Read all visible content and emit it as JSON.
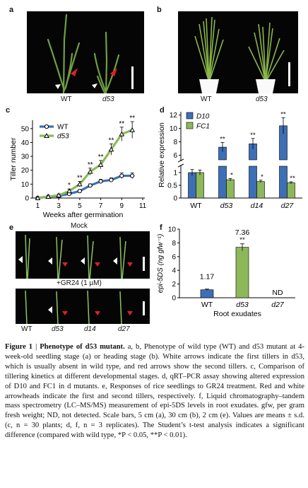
{
  "panels": {
    "a": {
      "label": "a",
      "genotypes": [
        "WT",
        "d53"
      ]
    },
    "b": {
      "label": "b",
      "genotypes": [
        "WT",
        "d53"
      ]
    },
    "c": {
      "label": "c"
    },
    "d": {
      "label": "d"
    },
    "e": {
      "label": "e",
      "top_title": "Mock",
      "bottom_title": "+GR24 (1 µM)",
      "genotypes": [
        "WT",
        "d53",
        "d14",
        "d27"
      ]
    },
    "f": {
      "label": "f"
    }
  },
  "colors": {
    "wt_blue": "#3d6fb6",
    "mutant_green": "#8db85a",
    "arrow_red": "#e02020",
    "arrow_white": "#ffffff"
  },
  "chart_data": [
    {
      "id": "c",
      "type": "line",
      "xlabel": "Weeks after germination",
      "ylabel": "Tiller number",
      "xticks": [
        1,
        3,
        5,
        7,
        9,
        11
      ],
      "yticks": [
        0,
        10,
        20,
        30,
        40,
        50
      ],
      "xlim": [
        0.5,
        11.2
      ],
      "ylim": [
        0,
        56
      ],
      "x": [
        1,
        2,
        3,
        4,
        5,
        6,
        7,
        8,
        9,
        10
      ],
      "legend_position": "top-left",
      "series": [
        {
          "name": "WT",
          "values": [
            0,
            1,
            1.5,
            3,
            5,
            9,
            12,
            13,
            16,
            16
          ],
          "err": [
            0,
            0,
            0.5,
            0.8,
            1,
            1.2,
            1.5,
            1.5,
            2,
            2
          ]
        },
        {
          "name": "d53",
          "values": [
            0,
            1,
            2,
            5,
            10,
            19,
            24,
            35,
            46,
            49
          ],
          "err": [
            0,
            0,
            0.8,
            1.5,
            2,
            2.5,
            3,
            4,
            5,
            6
          ]
        }
      ],
      "significance": [
        "",
        "",
        "",
        "*",
        "**",
        "**",
        "**",
        "**",
        "**",
        "**"
      ]
    },
    {
      "id": "d",
      "type": "bar",
      "ylabel": "Relative expression",
      "categories": [
        "WT",
        "d53",
        "d14",
        "d27"
      ],
      "yticks_lower": [
        0,
        0.5,
        1
      ],
      "yticks_upper": [
        6,
        8,
        10,
        12
      ],
      "axis_break": true,
      "legend_position": "top-left",
      "series": [
        {
          "name": "D10",
          "values": [
            1.0,
            7.2,
            7.7,
            10.4
          ],
          "err": [
            0.12,
            0.7,
            0.8,
            1.2
          ],
          "significance": [
            "",
            "**",
            "**",
            "**"
          ]
        },
        {
          "name": "FC1",
          "values": [
            1.0,
            0.72,
            0.65,
            0.6
          ],
          "err": [
            0.1,
            0.05,
            0.05,
            0.04
          ],
          "significance": [
            "",
            "*",
            "*",
            "**"
          ]
        }
      ]
    },
    {
      "id": "f",
      "type": "bar",
      "ylabel": "epi-5DS (ng gfw⁻¹)",
      "xlabel": "Root exudates",
      "categories": [
        "WT",
        "d53",
        "d27"
      ],
      "values": [
        1.17,
        7.36,
        null
      ],
      "err": [
        0.1,
        0.5,
        null
      ],
      "data_labels": [
        "1.17",
        "7.36",
        "ND"
      ],
      "significance": [
        "",
        "**",
        ""
      ],
      "yticks": [
        0,
        2,
        4,
        6,
        8,
        10
      ],
      "ylim": [
        0,
        10
      ]
    }
  ],
  "caption": {
    "head": "Figure 1",
    "sep": " | ",
    "title": "Phenotype of d53 mutant.",
    "body": "a, b, Phenotype of wild type (WT) and d53 mutant at 4-week-old seedling stage (a) or heading stage (b). White arrows indicate the first tillers in d53, which is usually absent in wild type, and red arrows show the second tillers. c, Comparison of tillering kinetics at different developmental stages. d, qRT–PCR assay showing altered expression of D10 and FC1 in d mutants. e, Responses of rice seedlings to GR24 treatment. Red and white arrowheads indicate the first and second tillers, respectively. f, Liquid chromatography–tandem mass spectrometry (LC–MS/MS) measurement of epi-5DS levels in root exudates. gfw, per gram fresh weight; ND, not detected. Scale bars, 5 cm (a), 30 cm (b), 2 cm (e). Values are means ± s.d. (c, n = 30 plants; d, f, n = 3 replicates). The Student’s t-test analysis indicates a significant difference (compared with wild type, *P < 0.05, **P < 0.01)."
  }
}
